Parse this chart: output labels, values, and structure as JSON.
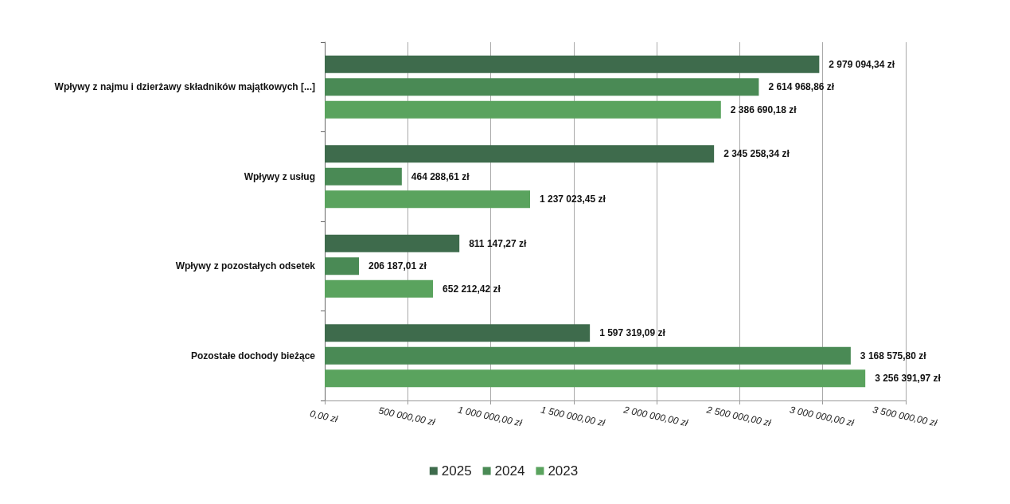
{
  "chart_data": {
    "type": "bar",
    "orientation": "horizontal",
    "categories": [
      "Wpływy z najmu i dzierżawy składników majątkowych [...]",
      "Wpływy z usług",
      "Wpływy z pozostałych odsetek",
      "Pozostałe dochody bieżące"
    ],
    "series": [
      {
        "name": "2025",
        "color": "#3e6b4c",
        "values": [
          2979094.34,
          2345258.34,
          811147.27,
          1597319.09
        ],
        "value_labels": [
          "2 979 094,34 zł",
          "2 345 258,34 zł",
          "811 147,27 zł",
          "1 597 319,09 zł"
        ]
      },
      {
        "name": "2024",
        "color": "#4a8a55",
        "values": [
          2614968.86,
          464288.61,
          206187.01,
          3168575.8
        ],
        "value_labels": [
          "2 614 968,86 zł",
          "464 288,61 zł",
          "206 187,01 zł",
          "3 168 575,80 zł"
        ]
      },
      {
        "name": "2023",
        "color": "#5aa35e",
        "values": [
          2386690.18,
          1237023.45,
          652212.42,
          3256391.97
        ],
        "value_labels": [
          "2 386 690,18 zł",
          "1 237 023,45 zł",
          "652 212,42 zł",
          "3 256 391,97 zł"
        ]
      }
    ],
    "xlim": [
      0,
      3500000
    ],
    "xticks": [
      {
        "value": 0,
        "label": "0,00 zł"
      },
      {
        "value": 500000,
        "label": "500 000,00 zł"
      },
      {
        "value": 1000000,
        "label": "1 000 000,00 zł"
      },
      {
        "value": 1500000,
        "label": "1 500 000,00 zł"
      },
      {
        "value": 2000000,
        "label": "2 000 000,00 zł"
      },
      {
        "value": 2500000,
        "label": "2 500 000,00 zł"
      },
      {
        "value": 3000000,
        "label": "3 000 000,00 zł"
      },
      {
        "value": 3500000,
        "label": "3 500 000,00 zł"
      }
    ],
    "grid": "x",
    "legend": "bottom"
  }
}
